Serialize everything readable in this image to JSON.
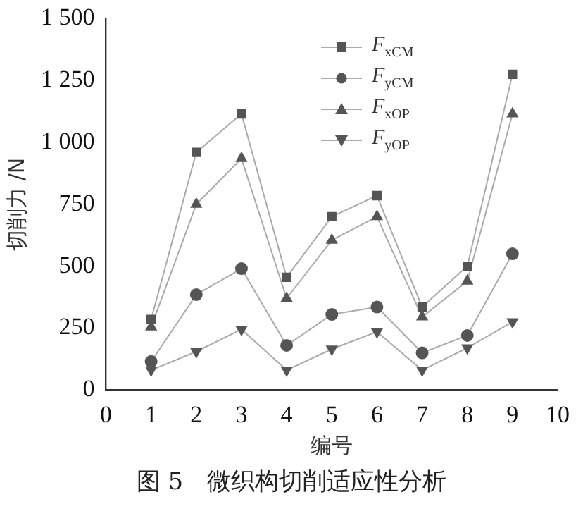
{
  "chart_data": {
    "type": "line",
    "title": "图 5　微织构切削适应性分析",
    "xlabel": "编号",
    "ylabel": "切削力 /N",
    "x": [
      1,
      2,
      3,
      4,
      5,
      6,
      7,
      8,
      9
    ],
    "xlim": [
      0,
      10
    ],
    "xticks": [
      0,
      1,
      2,
      3,
      4,
      5,
      6,
      7,
      8,
      9,
      10
    ],
    "ylim": [
      0,
      1500
    ],
    "yticks": [
      0,
      250,
      500,
      750,
      {
        "value": 1000,
        "label": "1 000"
      },
      {
        "value": 1250,
        "label": "1 250"
      },
      {
        "value": 1500,
        "label": "1 500"
      }
    ],
    "grid": false,
    "legend": "top",
    "line_style": "solid",
    "series": [
      {
        "name": "F$_{xCM}$",
        "color": "#555555",
        "marker": "square",
        "values": [
          285,
          960,
          1115,
          455,
          700,
          785,
          335,
          500,
          1275
        ]
      },
      {
        "name": "F$_{yCM}$",
        "color": "#555555",
        "marker": "circle",
        "values": [
          115,
          385,
          490,
          180,
          305,
          335,
          150,
          220,
          550
        ]
      },
      {
        "name": "F$_{xOP}$",
        "color": "#555555",
        "marker": "triangle",
        "values": [
          255,
          750,
          935,
          370,
          605,
          700,
          295,
          440,
          1115
        ]
      },
      {
        "name": "F$_{yOP}$",
        "color": "#555555",
        "marker": "triangle-down",
        "values": [
          80,
          155,
          245,
          80,
          165,
          235,
          80,
          170,
          275
        ]
      }
    ]
  }
}
